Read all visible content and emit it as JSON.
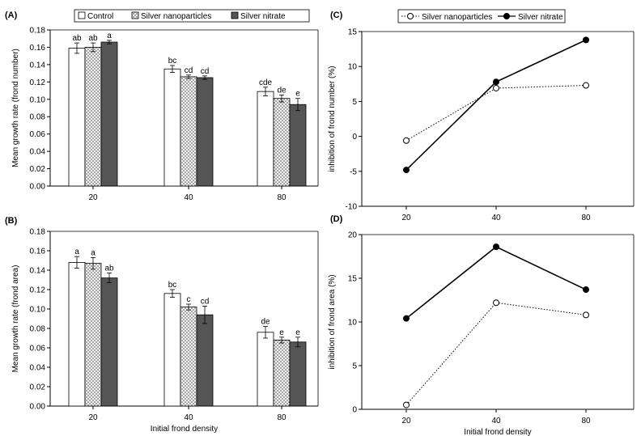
{
  "colors": {
    "control_fill": "#ffffff",
    "nanoparticles_fill": "#c8c8c8",
    "nitrate_fill": "#555555",
    "line_color": "#000000"
  },
  "legend_left": {
    "items": [
      {
        "label": "Control",
        "swatch": "control"
      },
      {
        "label": "Silver nanoparticles",
        "swatch": "nanoparticles"
      },
      {
        "label": "Silver nitrate",
        "swatch": "nitrate"
      }
    ]
  },
  "legend_right": {
    "items": [
      {
        "label": "Silver nanoparticles",
        "marker": "open-circle",
        "line": "dotted"
      },
      {
        "label": "Silver nitrate",
        "marker": "filled-circle",
        "line": "solid"
      }
    ]
  },
  "chart_data": [
    {
      "id": "A",
      "panel_label": "(A)",
      "type": "bar",
      "categories": [
        "20",
        "40",
        "80"
      ],
      "series": [
        {
          "name": "Control",
          "swatch": "control",
          "values": [
            0.159,
            0.135,
            0.109
          ],
          "errors": [
            0.006,
            0.004,
            0.005
          ],
          "sig": [
            "ab",
            "bc",
            "cde"
          ]
        },
        {
          "name": "Silver nanoparticles",
          "swatch": "nanoparticles",
          "values": [
            0.16,
            0.126,
            0.101
          ],
          "errors": [
            0.005,
            0.002,
            0.004
          ],
          "sig": [
            "ab",
            "cd",
            "de"
          ]
        },
        {
          "name": "Silver nitrate",
          "swatch": "nitrate",
          "values": [
            0.166,
            0.125,
            0.094
          ],
          "errors": [
            0.002,
            0.002,
            0.007
          ],
          "sig": [
            "a",
            "cd",
            "e"
          ]
        }
      ],
      "ylabel": "Mean growth rate (frond number)",
      "xlabel": "",
      "ylim": [
        0,
        0.18
      ],
      "yticks": [
        "0.00",
        "0.02",
        "0.04",
        "0.06",
        "0.08",
        "0.10",
        "0.12",
        "0.14",
        "0.16",
        "0.18"
      ]
    },
    {
      "id": "B",
      "panel_label": "(B)",
      "type": "bar",
      "categories": [
        "20",
        "40",
        "80"
      ],
      "series": [
        {
          "name": "Control",
          "swatch": "control",
          "values": [
            0.148,
            0.116,
            0.076
          ],
          "errors": [
            0.006,
            0.004,
            0.006
          ],
          "sig": [
            "a",
            "bc",
            "de"
          ]
        },
        {
          "name": "Silver nanoparticles",
          "swatch": "nanoparticles",
          "values": [
            0.147,
            0.102,
            0.068
          ],
          "errors": [
            0.006,
            0.003,
            0.003
          ],
          "sig": [
            "a",
            "c",
            "e"
          ]
        },
        {
          "name": "Silver nitrate",
          "swatch": "nitrate",
          "values": [
            0.132,
            0.094,
            0.066
          ],
          "errors": [
            0.005,
            0.009,
            0.005
          ],
          "sig": [
            "ab",
            "cd",
            "e"
          ]
        }
      ],
      "ylabel": "Mean growth rate (frond area)",
      "xlabel": "Initial frond density",
      "ylim": [
        0,
        0.18
      ],
      "yticks": [
        "0.00",
        "0.02",
        "0.04",
        "0.06",
        "0.08",
        "0.10",
        "0.12",
        "0.14",
        "0.16",
        "0.18"
      ]
    },
    {
      "id": "C",
      "panel_label": "(C)",
      "type": "line",
      "x": [
        "20",
        "40",
        "80"
      ],
      "series": [
        {
          "name": "Silver nanoparticles",
          "marker": "open",
          "dash": "dotted",
          "values": [
            -0.6,
            6.9,
            7.3
          ]
        },
        {
          "name": "Silver nitrate",
          "marker": "filled",
          "dash": "solid",
          "values": [
            -4.8,
            7.8,
            13.8
          ]
        }
      ],
      "ylabel": "inhibition of frond number (%)",
      "xlabel": "",
      "ylim": [
        -10,
        15
      ],
      "yticks": [
        "-10",
        "-5",
        "0",
        "5",
        "10",
        "15"
      ]
    },
    {
      "id": "D",
      "panel_label": "(D)",
      "type": "line",
      "x": [
        "20",
        "40",
        "80"
      ],
      "series": [
        {
          "name": "Silver nanoparticles",
          "marker": "open",
          "dash": "dotted",
          "values": [
            0.5,
            12.2,
            10.8
          ]
        },
        {
          "name": "Silver nitrate",
          "marker": "filled",
          "dash": "solid",
          "values": [
            10.4,
            18.6,
            13.7
          ]
        }
      ],
      "ylabel": "inhibition of frond area (%)",
      "xlabel": "Initial frond density",
      "ylim": [
        0,
        20
      ],
      "yticks": [
        "0",
        "5",
        "10",
        "15",
        "20"
      ]
    }
  ]
}
